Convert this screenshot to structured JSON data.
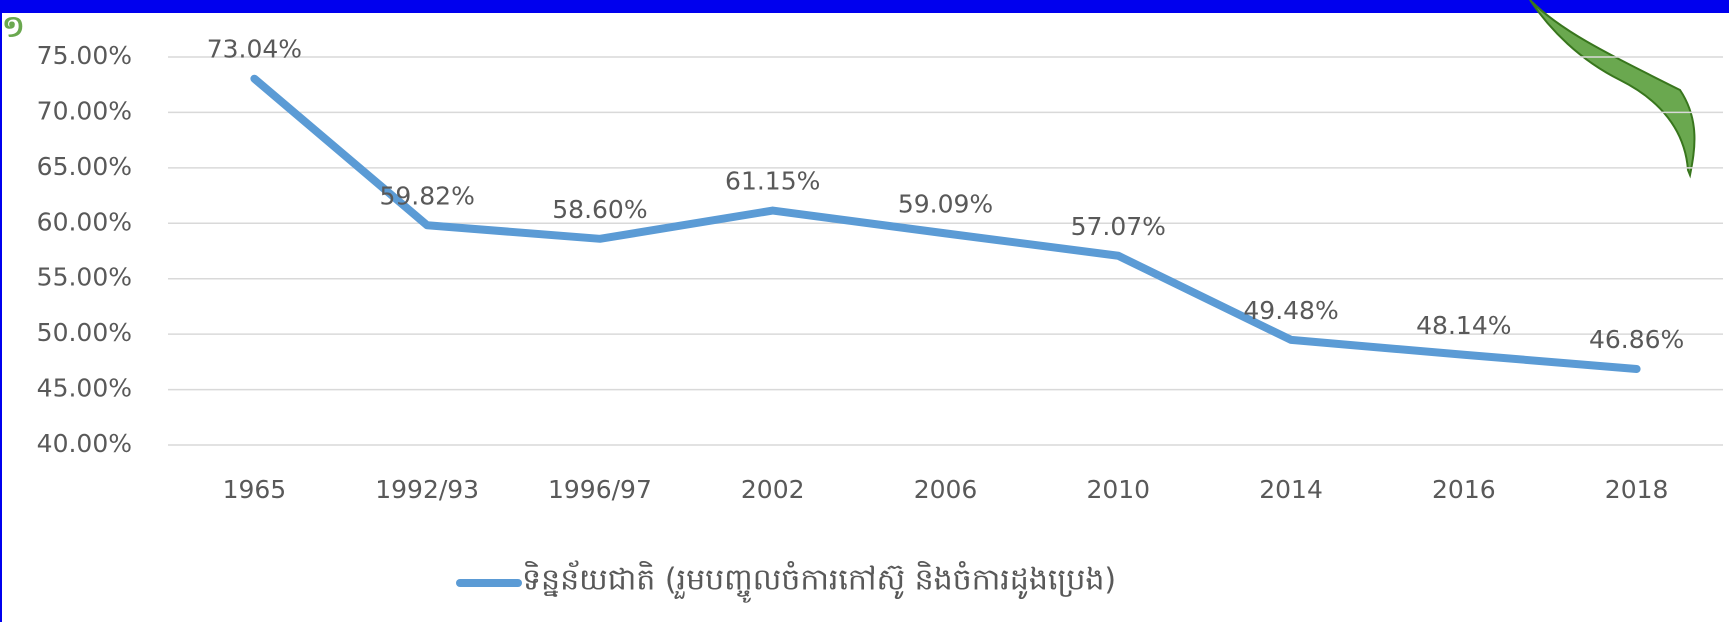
{
  "slide_number": "១",
  "chart_data": {
    "type": "line",
    "categories": [
      "1965",
      "1992/93",
      "1996/97",
      "2002",
      "2006",
      "2010",
      "2014",
      "2016",
      "2018"
    ],
    "series": [
      {
        "name": "ទិន្នន័យជាតិ (រួមបញ្ចូលចំការកៅស៊ូ និងចំការដូងប្រេង)",
        "color": "#5b9bd5",
        "values": [
          73.04,
          59.82,
          58.6,
          61.15,
          59.09,
          57.07,
          49.48,
          48.14,
          46.86
        ],
        "value_labels": [
          "73.04%",
          "59.82%",
          "58.60%",
          "61.15%",
          "59.09%",
          "57.07%",
          "49.48%",
          "48.14%",
          "46.86%"
        ]
      }
    ],
    "ylim": [
      40,
      75
    ],
    "yticks": [
      {
        "value": 40,
        "label": "40.00%"
      },
      {
        "value": 45,
        "label": "45.00%"
      },
      {
        "value": 50,
        "label": "50.00%"
      },
      {
        "value": 55,
        "label": "55.00%"
      },
      {
        "value": 60,
        "label": "60.00%"
      },
      {
        "value": 65,
        "label": "65.00%"
      },
      {
        "value": 70,
        "label": "70.00%"
      },
      {
        "value": 75,
        "label": "75.00%"
      }
    ],
    "grid": true,
    "legend": "bottom"
  }
}
